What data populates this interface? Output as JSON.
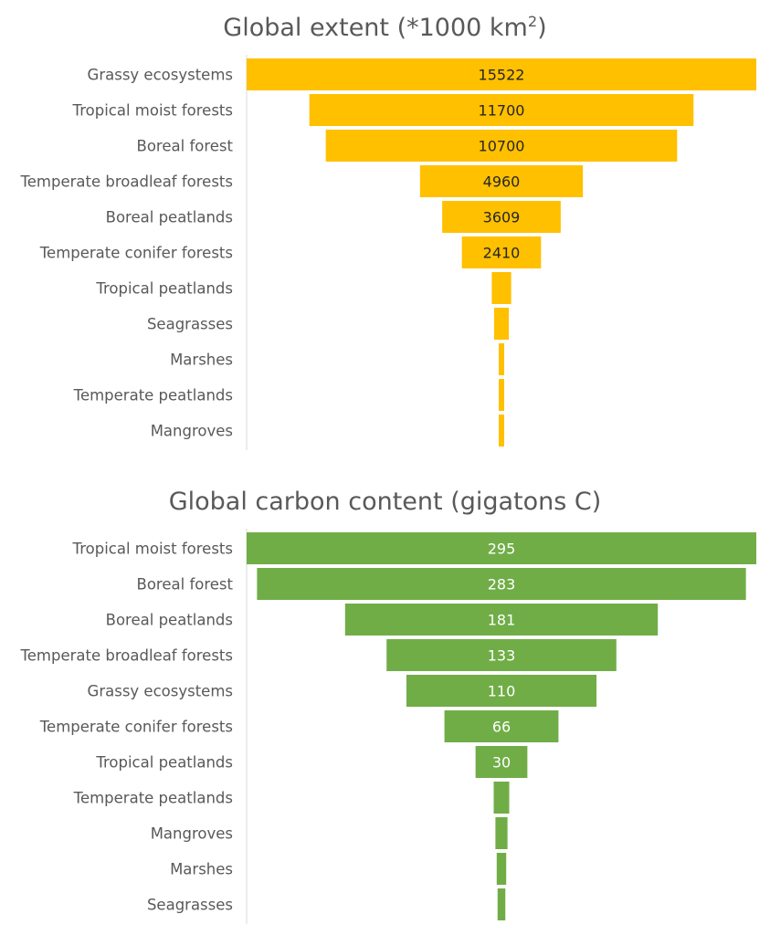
{
  "chart_data": [
    {
      "type": "bar",
      "subtype": "funnel",
      "title": "Global extent (*1000 km",
      "title_superscript": "2",
      "title_suffix": ")",
      "categories": [
        "Grassy ecosystems",
        "Tropical moist forests",
        "Boreal forest",
        "Temperate broadleaf forests",
        "Boreal peatlands",
        "Temperate conifer forests",
        "Tropical peatlands",
        "Seagrasses",
        "Marshes",
        "Temperate peatlands",
        "Mangroves"
      ],
      "values": [
        15522,
        11700,
        10700,
        4960,
        3609,
        2410,
        590,
        450,
        160,
        160,
        140
      ],
      "data_labels": [
        "15522",
        "11700",
        "10700",
        "4960",
        "3609",
        "2410",
        "",
        "",
        "",
        "",
        ""
      ],
      "bar_color": "#FFC000",
      "label_color": "#262626",
      "grid": false,
      "legend": "none"
    },
    {
      "type": "bar",
      "subtype": "funnel",
      "title": "Global carbon content (gigatons C)",
      "categories": [
        "Tropical moist forests",
        "Boreal forest",
        "Boreal peatlands",
        "Temperate broadleaf forests",
        "Grassy ecosystems",
        "Temperate conifer forests",
        "Tropical peatlands",
        "Temperate peatlands",
        "Mangroves",
        "Marshes",
        "Seagrasses"
      ],
      "values": [
        295,
        283,
        181,
        133,
        110,
        66,
        30,
        9,
        7,
        5.5,
        4.5
      ],
      "data_labels": [
        "295",
        "283",
        "181",
        "133",
        "110",
        "66",
        "30",
        "",
        "",
        "",
        ""
      ],
      "bar_color": "#70AD47",
      "label_color": "#ffffff",
      "grid": false,
      "legend": "none"
    }
  ]
}
